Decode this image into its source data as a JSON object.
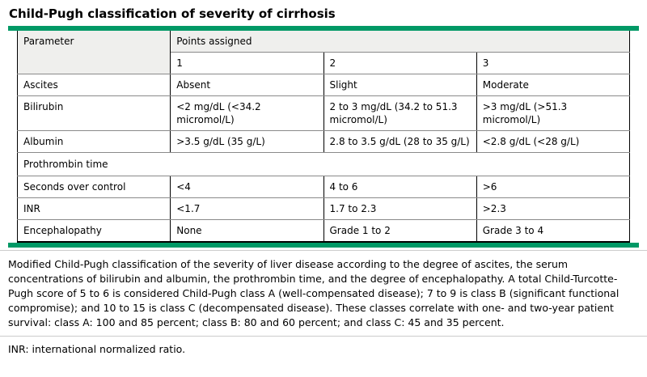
{
  "title": "Child-Pugh classification of severity of cirrhosis",
  "colors": {
    "accent_green": "#009966",
    "header_bg": "#efefed",
    "row_divider": "#8a8a8a"
  },
  "table": {
    "header": {
      "parameter_label": "Parameter",
      "points_assigned_label": "Points assigned",
      "point_columns": [
        "1",
        "2",
        "3"
      ]
    },
    "rows": [
      {
        "label": "Ascites",
        "points": [
          "Absent",
          "Slight",
          "Moderate"
        ]
      },
      {
        "label": "Bilirubin",
        "points": [
          "<2 mg/dL (<34.2 micromol/L)",
          "2 to 3 mg/dL (34.2 to 51.3 micromol/L)",
          ">3 mg/dL (>51.3 micromol/L)"
        ]
      },
      {
        "label": "Albumin",
        "points": [
          ">3.5 g/dL (35 g/L)",
          "2.8 to 3.5 g/dL (28 to 35 g/L)",
          "<2.8 g/dL (<28 g/L)"
        ]
      },
      {
        "label": "Prothrombin time",
        "section": true
      },
      {
        "label": "Seconds over control",
        "indent": true,
        "points": [
          "<4",
          "4 to 6",
          ">6"
        ]
      },
      {
        "label": "INR",
        "indent": true,
        "points": [
          "<1.7",
          "1.7 to 2.3",
          ">2.3"
        ]
      },
      {
        "label": "Encephalopathy",
        "points": [
          "None",
          "Grade 1 to 2",
          "Grade 3 to 4"
        ]
      }
    ]
  },
  "caption": "Modified Child-Pugh classification of the severity of liver disease according to the degree of ascites, the serum concentrations of bilirubin and albumin, the prothrombin time, and the degree of encephalopathy. A total Child-Turcotte-Pugh score of 5 to 6 is considered Child-Pugh class A (well-compensated disease); 7 to 9 is class B (significant functional compromise); and 10 to 15 is class C (decompensated disease). These classes correlate with one- and two-year patient survival: class A: 100 and 85 percent; class B: 80 and 60 percent; and class C: 45 and 35 percent.",
  "footnote": "INR: international normalized ratio."
}
